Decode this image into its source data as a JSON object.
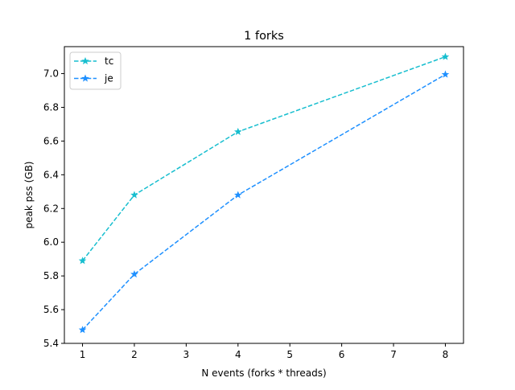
{
  "chart_data": {
    "type": "line",
    "title": "1 forks",
    "xlabel": "N events (forks * threads)",
    "ylabel": "peak pss (GB)",
    "xlim": [
      0.65,
      8.35
    ],
    "ylim": [
      5.4,
      7.16
    ],
    "xticks": [
      1,
      2,
      3,
      4,
      5,
      6,
      7,
      8
    ],
    "yticks": [
      5.4,
      5.6,
      5.8,
      6.0,
      6.2,
      6.4,
      6.6,
      6.8,
      7.0
    ],
    "x": [
      1,
      2,
      4,
      8
    ],
    "series": [
      {
        "name": "tc",
        "color": "#17becf",
        "marker": "star",
        "linestyle": "dashed",
        "values": [
          5.89,
          6.28,
          6.655,
          7.1
        ]
      },
      {
        "name": "je",
        "color": "#1e90ff",
        "marker": "star",
        "linestyle": "dashed",
        "values": [
          5.48,
          5.81,
          6.28,
          6.995
        ]
      }
    ],
    "legend": {
      "placement": "top-left"
    },
    "grid": false
  }
}
